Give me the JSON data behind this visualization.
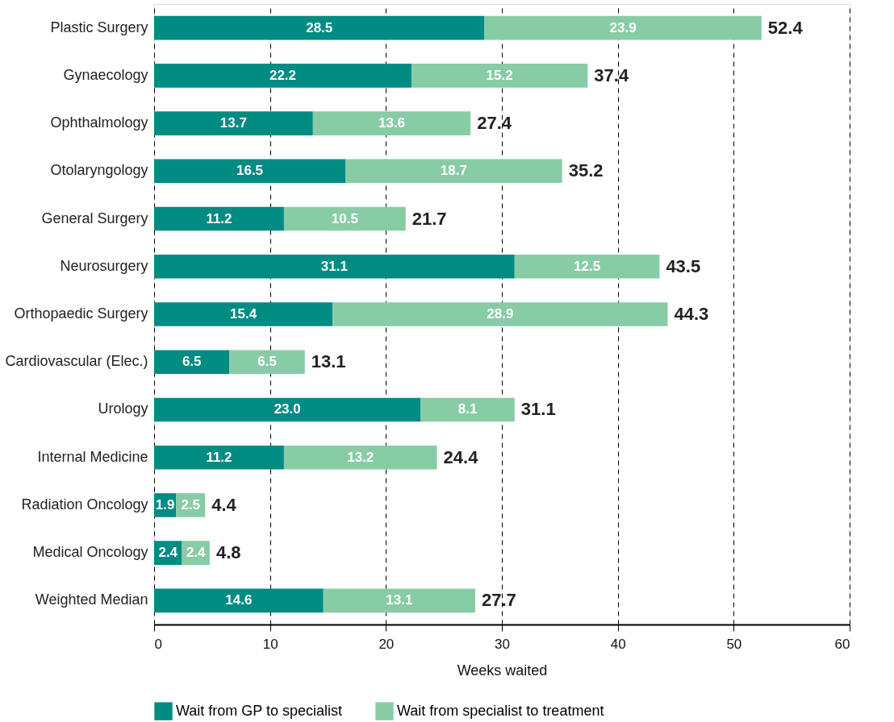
{
  "chart_data": {
    "type": "bar",
    "orientation": "horizontal",
    "stacked": true,
    "categories": [
      "Plastic Surgery",
      "Gynaecology",
      "Ophthalmology",
      "Otolaryngology",
      "General Surgery",
      "Neurosurgery",
      "Orthopaedic Surgery",
      "Cardiovascular (Elec.)",
      "Urology",
      "Internal Medicine",
      "Radiation Oncology",
      "Medical Oncology",
      "Weighted Median"
    ],
    "series": [
      {
        "name": "Wait from GP to specialist",
        "color": "#008b83",
        "values": [
          28.5,
          22.2,
          13.7,
          16.5,
          11.2,
          31.1,
          15.4,
          6.5,
          23.0,
          11.2,
          1.9,
          2.4,
          14.6
        ],
        "value_labels": [
          "28.5",
          "22.2",
          "13.7",
          "16.5",
          "11.2",
          "31.1",
          "15.4",
          "6.5",
          "23.0",
          "11.2",
          "1.9",
          "2.4",
          "14.6"
        ]
      },
      {
        "name": "Wait from specialist to treatment",
        "color": "#88cca6",
        "values": [
          23.9,
          15.2,
          13.6,
          18.7,
          10.5,
          12.5,
          28.9,
          6.5,
          8.1,
          13.2,
          2.5,
          2.4,
          13.1
        ],
        "value_labels": [
          "23.9",
          "15.2",
          "13.6",
          "18.7",
          "10.5",
          "12.5",
          "28.9",
          "6.5",
          "8.1",
          "13.2",
          "2.5",
          "2.4",
          "13.1"
        ]
      }
    ],
    "totals": [
      "52.4",
      "37.4",
      "27.4",
      "35.2",
      "21.7",
      "43.5",
      "44.3",
      "13.1",
      "31.1",
      "24.4",
      "4.4",
      "4.8",
      "27.7"
    ],
    "xlabel": "Weeks waited",
    "xlim": [
      0,
      60
    ],
    "xticks": [
      0,
      10,
      20,
      30,
      40,
      50,
      60
    ],
    "grid": "x",
    "legend": "bottom"
  }
}
